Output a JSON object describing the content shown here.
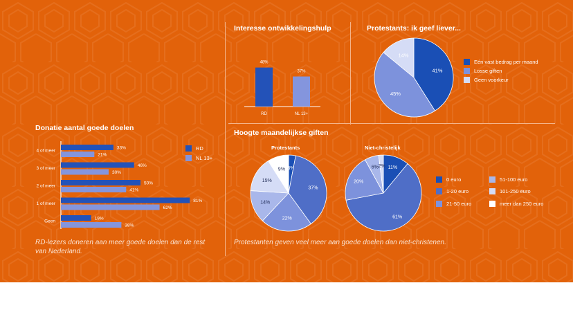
{
  "colors": {
    "background": "#e2620a",
    "rd": "#2352b8",
    "nl": "#8495dd",
    "text": "#ffffff"
  },
  "donatie": {
    "title": "Donatie aantal goede doelen",
    "caption": "RD-lezers doneren aan meer goede doelen dan de rest van Nederland.",
    "legend": [
      "RD",
      "NL 13+"
    ]
  },
  "interesse": {
    "title": "Interesse ontwikkelingshulp"
  },
  "protestants_geef": {
    "title": "Protestants: ik geef liever...",
    "legend": [
      "Eén vast bedrag per maand",
      "Losse giften",
      "Geen voorkeur"
    ]
  },
  "hoogte": {
    "title": "Hoogte maandelijkse giften",
    "sub_left": "Protestants",
    "sub_right": "Niet-christelijk",
    "legend": [
      "0 euro",
      "1-20 euro",
      "21-50 euro",
      "51-100 euro",
      "101-250 euro",
      "meer dan 250 euro"
    ],
    "caption": "Protestanten geven veel meer aan goede doelen dan niet-christenen."
  },
  "chart_data": [
    {
      "type": "bar",
      "orientation": "horizontal",
      "title": "Donatie aantal goede doelen",
      "categories": [
        "4 of meer",
        "3 of meer",
        "2 of meer",
        "1 of meer",
        "Geen"
      ],
      "series": [
        {
          "name": "RD",
          "values": [
            33,
            46,
            50,
            81,
            19
          ],
          "labels": [
            "33%",
            "46%",
            "50%",
            "81%",
            "19%"
          ],
          "color": "#2352b8"
        },
        {
          "name": "NL 13+",
          "values": [
            21,
            30,
            41,
            62,
            38
          ],
          "labels": [
            "21%",
            "30%",
            "41%",
            "62%",
            "38%"
          ],
          "color": "#8495dd"
        }
      ],
      "xlim": [
        0,
        100
      ]
    },
    {
      "type": "bar",
      "title": "Interesse ontwikkelingshulp",
      "categories": [
        "RD",
        "NL 13+"
      ],
      "values": [
        48,
        37
      ],
      "labels": [
        "48%",
        "37%"
      ],
      "colors": [
        "#2352b8",
        "#8495dd"
      ],
      "ylim": [
        0,
        60
      ]
    },
    {
      "type": "pie",
      "title": "Protestants: ik geef liever...",
      "categories": [
        "Eén vast bedrag per maand",
        "Losse giften",
        "Geen voorkeur"
      ],
      "values": [
        41,
        45,
        14
      ],
      "labels": [
        "41%",
        "45%",
        "14%"
      ],
      "colors": [
        "#1a4fb5",
        "#7d92dc",
        "#d5dcf6"
      ]
    },
    {
      "type": "pie",
      "title": "Protestants",
      "categories": [
        "0 euro",
        "1-20 euro",
        "21-50 euro",
        "51-100 euro",
        "101-250 euro",
        "meer dan 250 euro"
      ],
      "values": [
        3,
        37,
        22,
        14,
        15,
        9
      ],
      "labels": [
        "3%",
        "37%",
        "22%",
        "14%",
        "15%",
        "9%"
      ],
      "colors": [
        "#1a4fb5",
        "#4f6ec7",
        "#7d92dc",
        "#a9b7ea",
        "#d5dcf6",
        "#ffffff"
      ]
    },
    {
      "type": "pie",
      "title": "Niet-christelijk",
      "categories": [
        "0 euro",
        "1-20 euro",
        "21-50 euro",
        "51-100 euro",
        "101-250 euro",
        "meer dan 250 euro"
      ],
      "values": [
        11,
        61,
        20,
        6,
        2,
        0
      ],
      "labels": [
        "11%",
        "61%",
        "20%",
        "6%",
        "2%",
        ""
      ],
      "colors": [
        "#1a4fb5",
        "#4f6ec7",
        "#7d92dc",
        "#a9b7ea",
        "#d5dcf6",
        "#ffffff"
      ]
    }
  ]
}
